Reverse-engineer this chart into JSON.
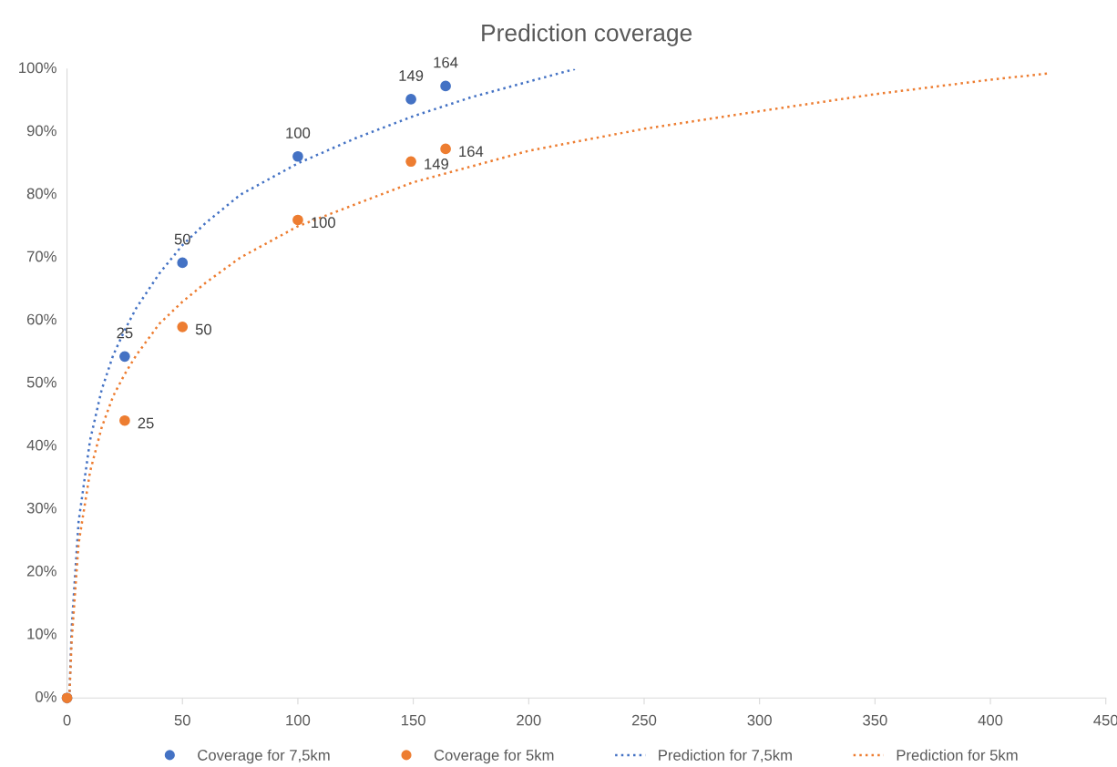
{
  "chart_data": {
    "type": "scatter",
    "title": "Prediction coverage",
    "xlim": [
      0,
      450
    ],
    "xticks": [
      0,
      50,
      100,
      150,
      200,
      250,
      300,
      350,
      400,
      450
    ],
    "ylim": [
      0,
      100
    ],
    "yticks": [
      {
        "value": 0,
        "label": "0%"
      },
      {
        "value": 10,
        "label": "10%"
      },
      {
        "value": 20,
        "label": "20%"
      },
      {
        "value": 30,
        "label": "30%"
      },
      {
        "value": 40,
        "label": "40%"
      },
      {
        "value": 50,
        "label": "50%"
      },
      {
        "value": 60,
        "label": "60%"
      },
      {
        "value": 70,
        "label": "70%"
      },
      {
        "value": 80,
        "label": "80%"
      },
      {
        "value": 90,
        "label": "90%"
      },
      {
        "value": 100,
        "label": "100%"
      }
    ],
    "grid": false,
    "legend": "bottom",
    "annotations": [
      {
        "text": "25",
        "x": 25,
        "y": 54.3
      },
      {
        "text": "50",
        "x": 50,
        "y": 69.2
      },
      {
        "text": "100",
        "x": 100,
        "y": 86.1
      },
      {
        "text": "149",
        "x": 149,
        "y": 95.2
      },
      {
        "text": "164",
        "x": 164,
        "y": 97.3
      },
      {
        "text": "25",
        "x": 25,
        "y": 44.1
      },
      {
        "text": "50",
        "x": 50,
        "y": 59.0
      },
      {
        "text": "100",
        "x": 100,
        "y": 76.0
      },
      {
        "text": "149",
        "x": 149,
        "y": 85.3
      },
      {
        "text": "164",
        "x": 164,
        "y": 87.3
      }
    ],
    "series": [
      {
        "name": "Coverage for 7,5km",
        "type": "scatter",
        "marker": "circle",
        "color": "#4472c4",
        "x": [
          0,
          25,
          50,
          100,
          149,
          164
        ],
        "values": [
          0,
          54.3,
          69.2,
          86.1,
          95.2,
          97.3
        ]
      },
      {
        "name": "Coverage for 5km",
        "type": "scatter",
        "marker": "circle",
        "color": "#ed7d31",
        "x": [
          0,
          25,
          50,
          100,
          149,
          164
        ],
        "values": [
          0,
          44.1,
          59.0,
          76.0,
          85.3,
          87.3
        ]
      },
      {
        "name": "Prediction for 7,5km",
        "type": "line",
        "line_style": "dotted",
        "color": "#4472c4",
        "x": [
          1,
          2,
          5,
          10,
          15,
          20,
          25,
          30,
          40,
          50,
          60,
          75,
          100,
          125,
          150,
          175,
          200,
          220
        ],
        "values": [
          0,
          11,
          28,
          41,
          49,
          54.5,
          58.5,
          62,
          67.5,
          72,
          75.5,
          80,
          85,
          89,
          92.5,
          95.5,
          98,
          100
        ]
      },
      {
        "name": "Prediction for 5km",
        "type": "line",
        "line_style": "dotted",
        "color": "#ed7d31",
        "x": [
          1,
          2,
          5,
          10,
          15,
          20,
          25,
          30,
          40,
          50,
          60,
          75,
          100,
          150,
          200,
          250,
          300,
          350,
          400,
          425
        ],
        "values": [
          0,
          9,
          24.5,
          36,
          43,
          48,
          51.5,
          54.5,
          59.5,
          63,
          66,
          70,
          75,
          82,
          87,
          90.5,
          93.3,
          96,
          98.3,
          99.3
        ]
      }
    ]
  }
}
